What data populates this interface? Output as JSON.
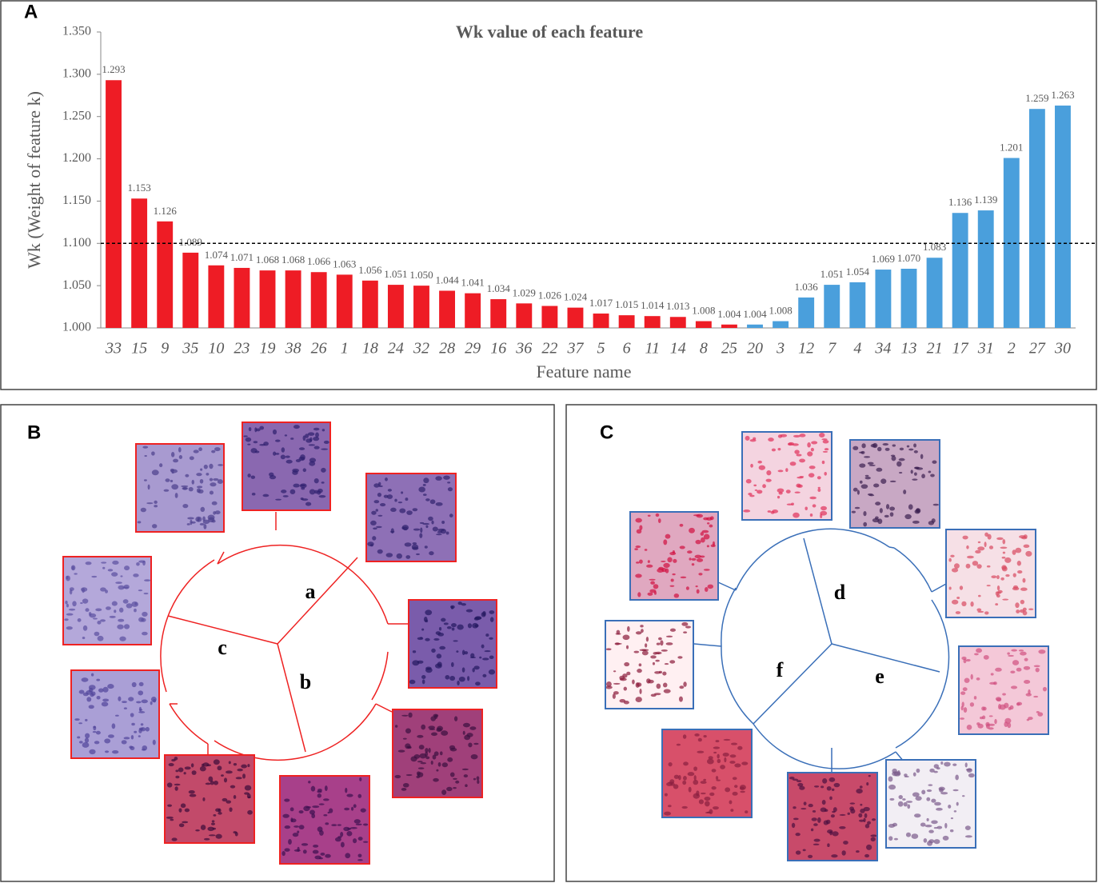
{
  "panel_labels": [
    "A",
    "B",
    "C"
  ],
  "diagram_b": {
    "labels": [
      "a",
      "b",
      "c"
    ]
  },
  "diagram_c": {
    "labels": [
      "d",
      "e",
      "f"
    ]
  },
  "chart_data": {
    "type": "bar",
    "title": "Wk value of each feature",
    "x_label": "Feature name",
    "y_label": "Wk (Weight of  feature k)",
    "categories": [
      "33",
      "15",
      "9",
      "35",
      "10",
      "23",
      "19",
      "38",
      "26",
      "1",
      "18",
      "24",
      "32",
      "28",
      "29",
      "16",
      "36",
      "22",
      "37",
      "5",
      "6",
      "11",
      "14",
      "8",
      "25",
      "20",
      "3",
      "12",
      "7",
      "4",
      "34",
      "13",
      "21",
      "17",
      "31",
      "2",
      "27",
      "30"
    ],
    "values": [
      1.293,
      1.153,
      1.126,
      1.089,
      1.074,
      1.071,
      1.068,
      1.068,
      1.066,
      1.063,
      1.056,
      1.051,
      1.05,
      1.044,
      1.041,
      1.034,
      1.029,
      1.026,
      1.024,
      1.017,
      1.015,
      1.014,
      1.013,
      1.008,
      1.004,
      1.004,
      1.008,
      1.036,
      1.051,
      1.054,
      1.069,
      1.07,
      1.083,
      1.136,
      1.139,
      1.201,
      1.259,
      1.263
    ],
    "value_labels": [
      "1.293",
      "1.153",
      "1.126",
      "1.089",
      "1.074",
      "1.071",
      "1.068",
      "1.068",
      "1.066",
      "1.063",
      "1.056",
      "1.051",
      "1.050",
      "1.044",
      "1.041",
      "1.034",
      "1.029",
      "1.026",
      "1.024",
      "1.017",
      "1.015",
      "1.014",
      "1.013",
      "1.008",
      "1.004",
      "1.004",
      "1.008",
      "1.036",
      "1.051",
      "1.054",
      "1.069",
      "1.070",
      "1.083",
      "1.136",
      "1.139",
      "1.201",
      "1.259",
      "1.263"
    ],
    "colors": [
      "#ee1c25",
      "#ee1c25",
      "#ee1c25",
      "#ee1c25",
      "#ee1c25",
      "#ee1c25",
      "#ee1c25",
      "#ee1c25",
      "#ee1c25",
      "#ee1c25",
      "#ee1c25",
      "#ee1c25",
      "#ee1c25",
      "#ee1c25",
      "#ee1c25",
      "#ee1c25",
      "#ee1c25",
      "#ee1c25",
      "#ee1c25",
      "#ee1c25",
      "#ee1c25",
      "#ee1c25",
      "#ee1c25",
      "#ee1c25",
      "#ee1c25",
      "#4a9fdc",
      "#4a9fdc",
      "#4a9fdc",
      "#4a9fdc",
      "#4a9fdc",
      "#4a9fdc",
      "#4a9fdc",
      "#4a9fdc",
      "#4a9fdc",
      "#4a9fdc",
      "#4a9fdc",
      "#4a9fdc",
      "#4a9fdc"
    ],
    "ylim": [
      1.0,
      1.35
    ],
    "yticks": [
      {
        "value": 1.0,
        "label": "1.000"
      },
      {
        "value": 1.05,
        "label": "1.050"
      },
      {
        "value": 1.1,
        "label": "1.100"
      },
      {
        "value": 1.15,
        "label": "1.150"
      },
      {
        "value": 1.2,
        "label": "1.200"
      },
      {
        "value": 1.25,
        "label": "1.250"
      },
      {
        "value": 1.3,
        "label": "1.300"
      },
      {
        "value": 1.35,
        "label": "1.350"
      }
    ],
    "reference_line": 1.1,
    "grid": false
  }
}
